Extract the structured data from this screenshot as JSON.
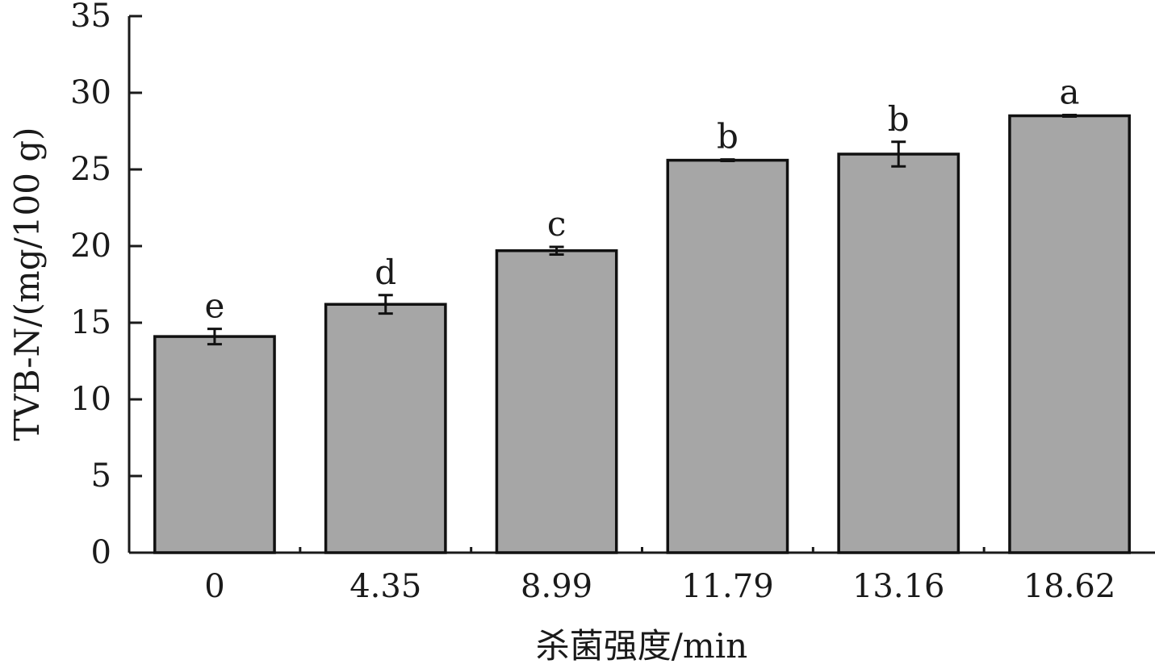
{
  "chart_data": {
    "type": "bar",
    "title": "",
    "xlabel": "杀菌强度/min",
    "ylabel": "TVB-N/(mg/100 g)",
    "categories": [
      "0",
      "4.35",
      "8.99",
      "11.79",
      "13.16",
      "18.62"
    ],
    "values": [
      14.1,
      16.2,
      19.7,
      25.6,
      26.0,
      28.5
    ],
    "errors": [
      0.5,
      0.6,
      0.25,
      0.05,
      0.8,
      0.05
    ],
    "significance": [
      "e",
      "d",
      "c",
      "b",
      "b",
      "a"
    ],
    "ylim": [
      0,
      35
    ],
    "yticks": [
      0,
      5,
      10,
      15,
      20,
      25,
      30,
      35
    ],
    "grid": false,
    "colors": {
      "bar_fill": "#a6a6a6",
      "bar_stroke": "#111111",
      "axis": "#1a1a1a"
    }
  }
}
